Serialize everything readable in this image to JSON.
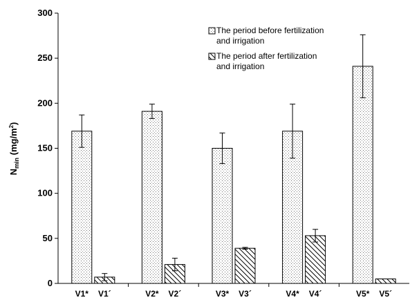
{
  "chart_data": {
    "type": "bar",
    "ylabel_main": "N",
    "ylabel_sub": "min",
    "ylabel_unit": " (mg/m",
    "ylabel_sup": "2",
    "ylabel_close": ")",
    "ylim": [
      0,
      300
    ],
    "yticks": [
      0,
      50,
      100,
      150,
      200,
      250,
      300
    ],
    "legend_position": "top-right",
    "grid": false,
    "groups": [
      "V1",
      "V2",
      "V3",
      "V4",
      "V5"
    ],
    "series": [
      {
        "name_line1": "The period before fertilization",
        "name_line2": "and irrigation",
        "pattern": "dots",
        "categories": [
          "V1*",
          "V2*",
          "V3*",
          "V4*",
          "V5*"
        ],
        "values": [
          169,
          191,
          150,
          169,
          241
        ],
        "errors": [
          18,
          8,
          17,
          30,
          35
        ]
      },
      {
        "name_line1": "The period after fertilization",
        "name_line2": "and irrigation",
        "pattern": "hatch",
        "categories": [
          "V1´",
          "V2´",
          "V3´",
          "V4´",
          "V5´"
        ],
        "values": [
          7,
          21,
          39,
          53,
          5
        ],
        "errors": [
          4,
          7,
          1,
          7,
          0
        ]
      }
    ]
  }
}
